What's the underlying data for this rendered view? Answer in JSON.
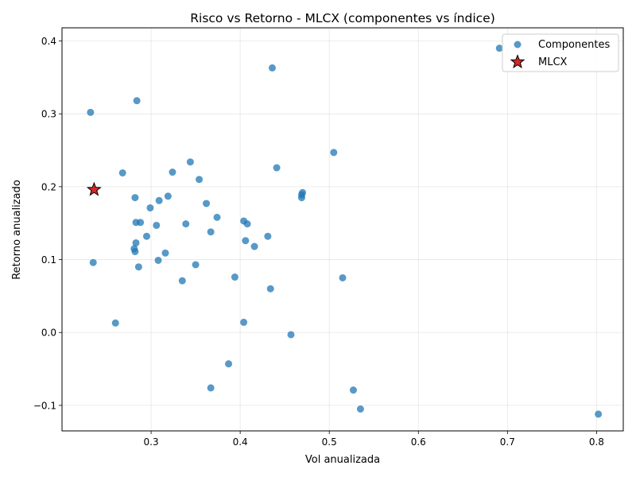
{
  "chart_data": {
    "type": "scatter",
    "title": "Risco vs Retorno - MLCX (componentes vs índice)",
    "xlabel": "Vol anualizada",
    "ylabel": "Retorno anualizado",
    "xlim": [
      0.2,
      0.83
    ],
    "ylim": [
      -0.135,
      0.418
    ],
    "xticks": [
      0.3,
      0.4,
      0.5,
      0.6,
      0.7,
      0.8
    ],
    "xtick_labels": [
      "0.3",
      "0.4",
      "0.5",
      "0.6",
      "0.7",
      "0.8"
    ],
    "yticks": [
      -0.1,
      0.0,
      0.1,
      0.2,
      0.3,
      0.4
    ],
    "ytick_labels": [
      "−0.1",
      "0.0",
      "0.1",
      "0.2",
      "0.3",
      "0.4"
    ],
    "grid": true,
    "legend_position": "top-right",
    "series": [
      {
        "name": "Componentes",
        "marker": "circle",
        "color": "#1f77b4",
        "points": [
          [
            0.232,
            0.302
          ],
          [
            0.235,
            0.096
          ],
          [
            0.26,
            0.013
          ],
          [
            0.268,
            0.219
          ],
          [
            0.281,
            0.115
          ],
          [
            0.282,
            0.185
          ],
          [
            0.282,
            0.111
          ],
          [
            0.283,
            0.151
          ],
          [
            0.283,
            0.123
          ],
          [
            0.284,
            0.318
          ],
          [
            0.286,
            0.09
          ],
          [
            0.288,
            0.151
          ],
          [
            0.295,
            0.132
          ],
          [
            0.299,
            0.171
          ],
          [
            0.306,
            0.147
          ],
          [
            0.308,
            0.099
          ],
          [
            0.309,
            0.181
          ],
          [
            0.316,
            0.109
          ],
          [
            0.319,
            0.187
          ],
          [
            0.324,
            0.22
          ],
          [
            0.335,
            0.071
          ],
          [
            0.339,
            0.149
          ],
          [
            0.344,
            0.234
          ],
          [
            0.35,
            0.093
          ],
          [
            0.354,
            0.21
          ],
          [
            0.362,
            0.177
          ],
          [
            0.367,
            0.138
          ],
          [
            0.367,
            -0.076
          ],
          [
            0.374,
            0.158
          ],
          [
            0.387,
            -0.043
          ],
          [
            0.394,
            0.076
          ],
          [
            0.404,
            0.153
          ],
          [
            0.404,
            0.014
          ],
          [
            0.406,
            0.126
          ],
          [
            0.408,
            0.149
          ],
          [
            0.416,
            0.118
          ],
          [
            0.431,
            0.132
          ],
          [
            0.434,
            0.06
          ],
          [
            0.436,
            0.363
          ],
          [
            0.441,
            0.226
          ],
          [
            0.457,
            -0.003
          ],
          [
            0.469,
            0.185
          ],
          [
            0.469,
            0.189
          ],
          [
            0.47,
            0.192
          ],
          [
            0.505,
            0.247
          ],
          [
            0.515,
            0.075
          ],
          [
            0.527,
            -0.079
          ],
          [
            0.535,
            -0.105
          ],
          [
            0.691,
            0.39
          ],
          [
            0.802,
            -0.112
          ]
        ]
      },
      {
        "name": "MLCX",
        "marker": "star",
        "color": "#d62728",
        "points": [
          [
            0.236,
            0.196
          ]
        ]
      }
    ]
  }
}
